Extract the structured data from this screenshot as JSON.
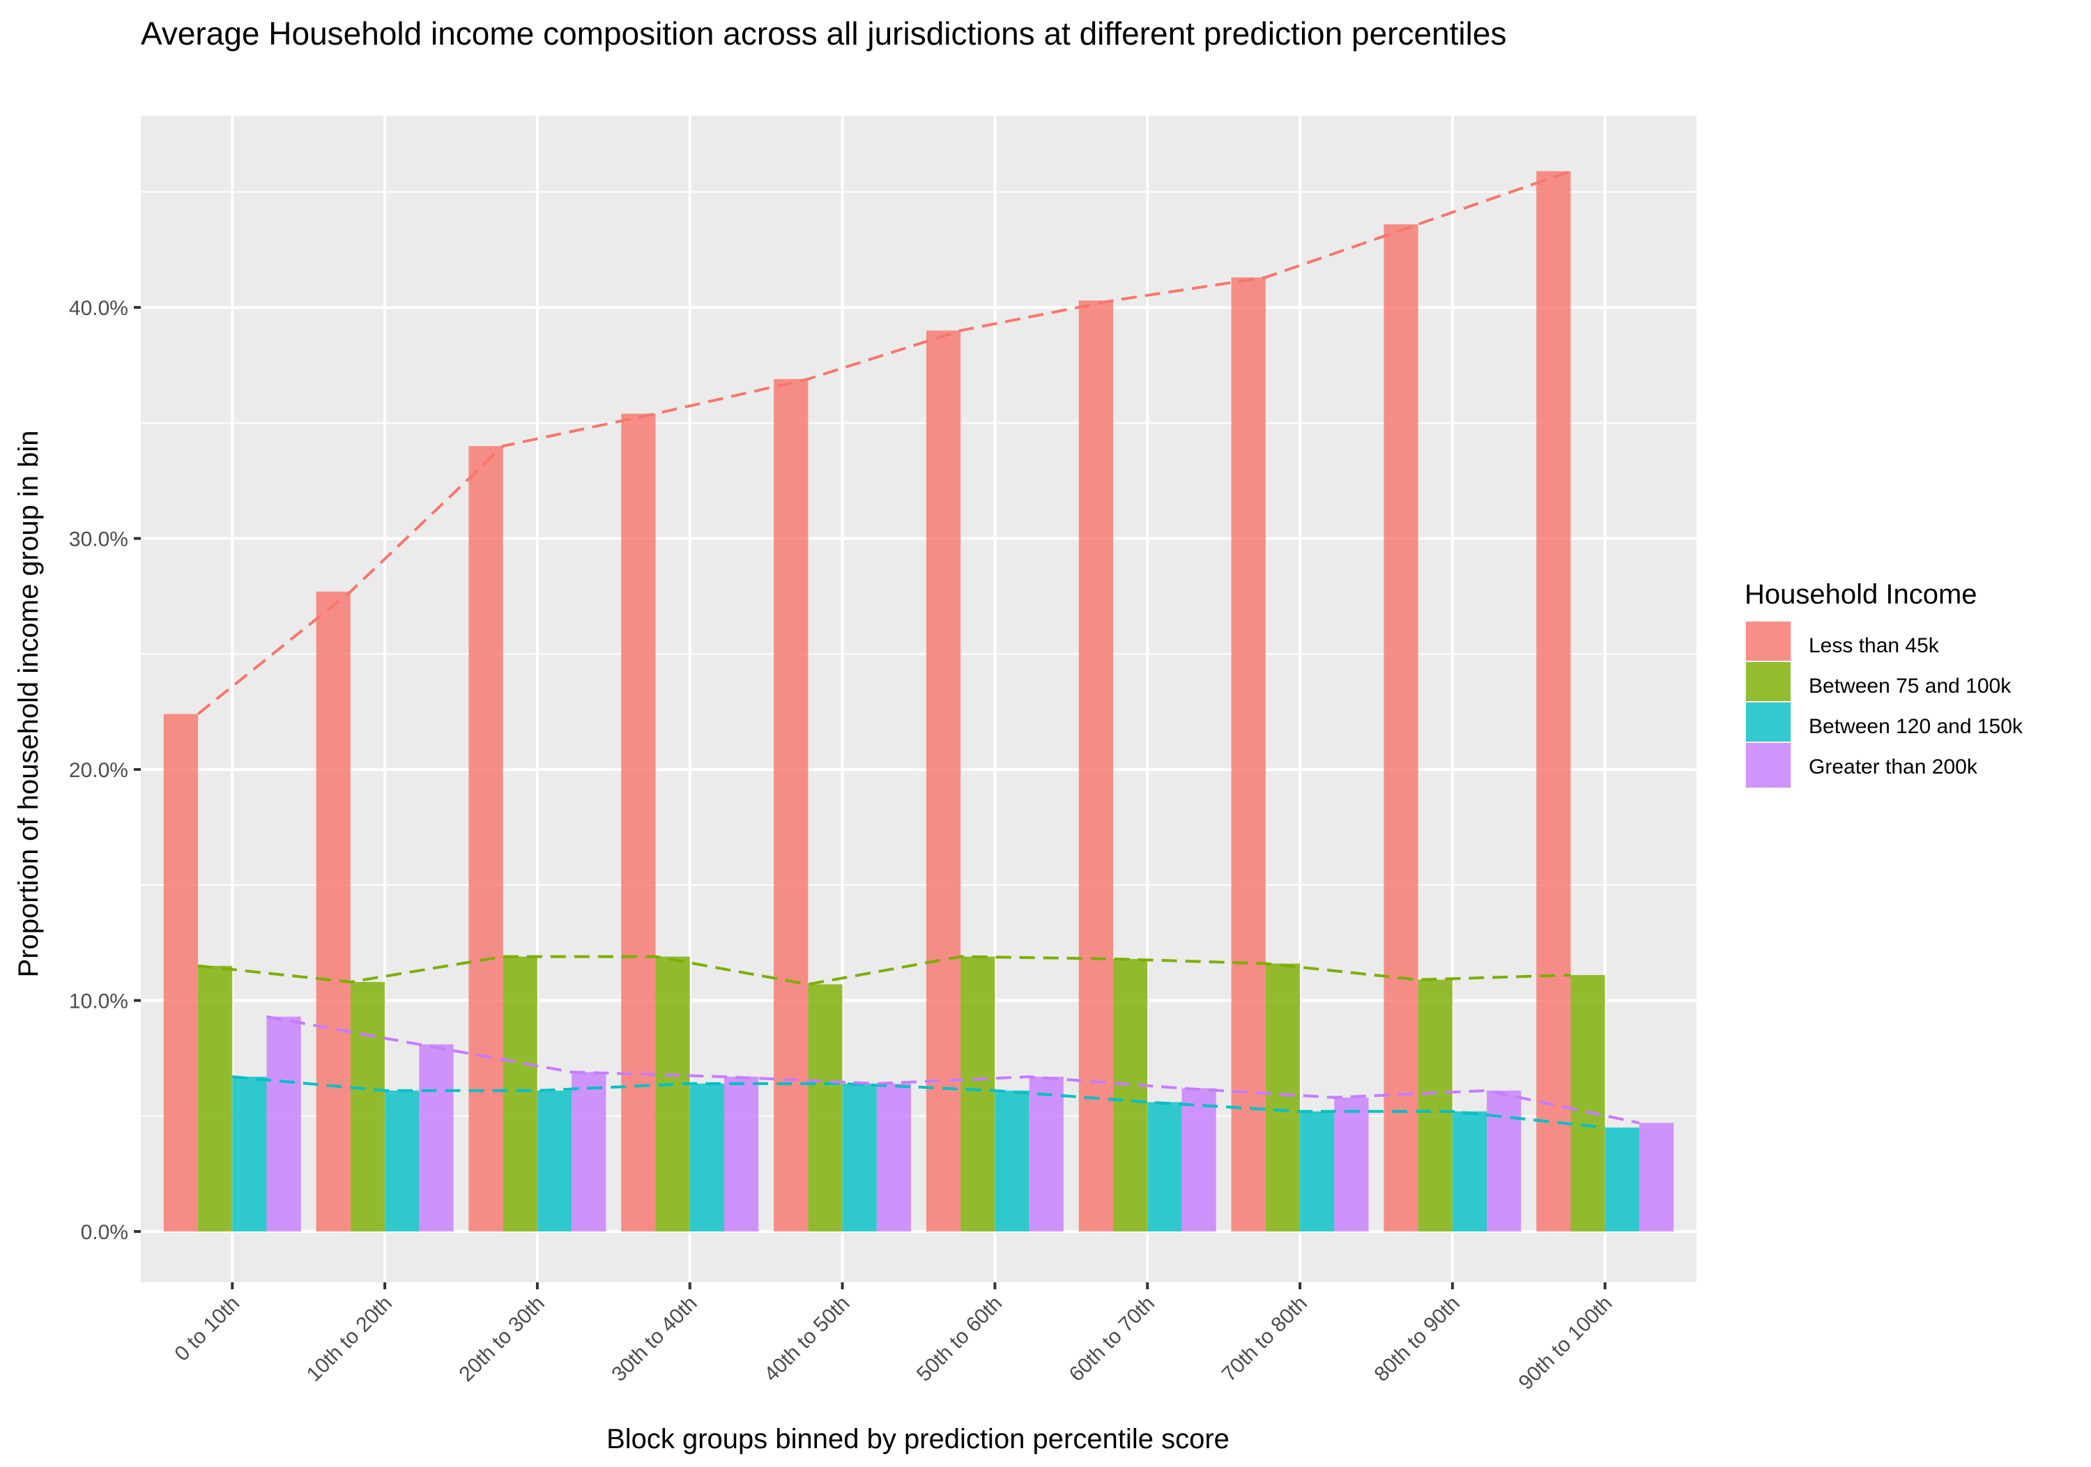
{
  "chart_data": {
    "type": "bar",
    "title": "Average Household income composition across all jurisdictions at different prediction percentiles",
    "xlabel": "Block groups binned by prediction percentile score",
    "ylabel": "Proportion of household income group in bin",
    "categories": [
      "0 to 10th",
      "10th to 20th",
      "20th to 30th",
      "30th to 40th",
      "40th to 50th",
      "50th to 60th",
      "60th to 70th",
      "70th to 80th",
      "80th to 90th",
      "90th to 100th"
    ],
    "ylim": [
      -0.022,
      0.483
    ],
    "yticks": [
      0.0,
      0.1,
      0.2,
      0.3,
      0.4
    ],
    "ytick_labels": [
      "0.0%",
      "10.0%",
      "20.0%",
      "30.0%",
      "40.0%"
    ],
    "grid": true,
    "legend": {
      "title": "Household Income",
      "position": "right"
    },
    "trend_lines": "dashed, one per series, through bar tops",
    "series": [
      {
        "name": "Less than 45k",
        "color": "#F8766D",
        "values": [
          0.224,
          0.277,
          0.34,
          0.354,
          0.369,
          0.39,
          0.403,
          0.413,
          0.436,
          0.459
        ]
      },
      {
        "name": "Between 75 and 100k",
        "color": "#7CAE00",
        "values": [
          0.115,
          0.108,
          0.119,
          0.119,
          0.107,
          0.119,
          0.118,
          0.116,
          0.109,
          0.111
        ]
      },
      {
        "name": "Between 120 and 150k",
        "color": "#00BFC4",
        "values": [
          0.067,
          0.061,
          0.061,
          0.064,
          0.064,
          0.061,
          0.056,
          0.052,
          0.052,
          0.045
        ]
      },
      {
        "name": "Greater than 200k",
        "color": "#C77CFF",
        "values": [
          0.093,
          0.081,
          0.069,
          0.067,
          0.064,
          0.067,
          0.062,
          0.058,
          0.061,
          0.047
        ]
      }
    ]
  }
}
